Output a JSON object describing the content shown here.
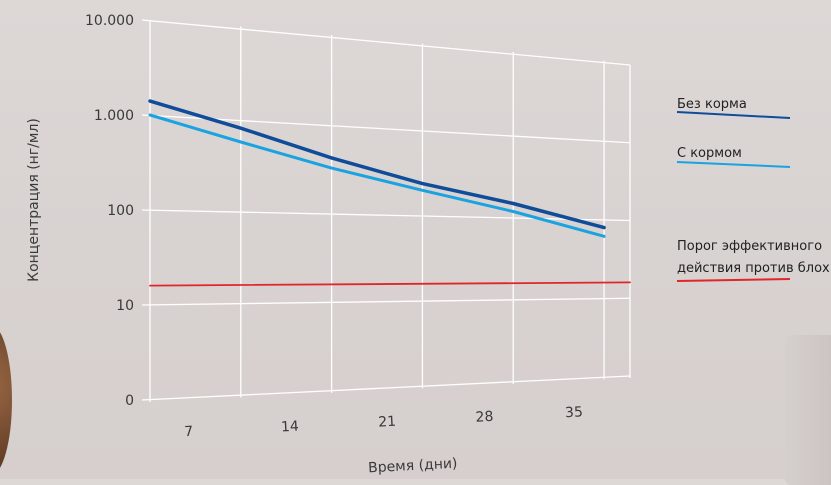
{
  "chart_data": {
    "type": "line",
    "title": "",
    "xlabel": "Время (дни)",
    "ylabel": "Концентрация (нг/мл)",
    "yscale": "log",
    "grid": true,
    "legend_position": "right",
    "x_tick_labels": [
      "7",
      "14",
      "21",
      "28",
      "35"
    ],
    "y_tick_labels": [
      "0",
      "10",
      "100",
      "1.000",
      "10.000"
    ],
    "y_tick_values": [
      1,
      10,
      100,
      1000,
      10000
    ],
    "x": [
      0,
      7,
      14,
      21,
      28,
      35
    ],
    "series": [
      {
        "name": "Без корма",
        "color": "#0f4c9a",
        "values": [
          1400,
          820,
          430,
          240,
          150,
          80
        ]
      },
      {
        "name": "С кормом",
        "color": "#1aa3e0",
        "values": [
          1000,
          580,
          330,
          200,
          120,
          62
        ]
      },
      {
        "name": "Порог эффективного действия против блох",
        "name_lines": [
          "Порог эффективного",
          "действия против блох"
        ],
        "color": "#e0262c",
        "values": [
          16,
          16,
          16,
          16,
          16,
          16
        ]
      }
    ]
  }
}
